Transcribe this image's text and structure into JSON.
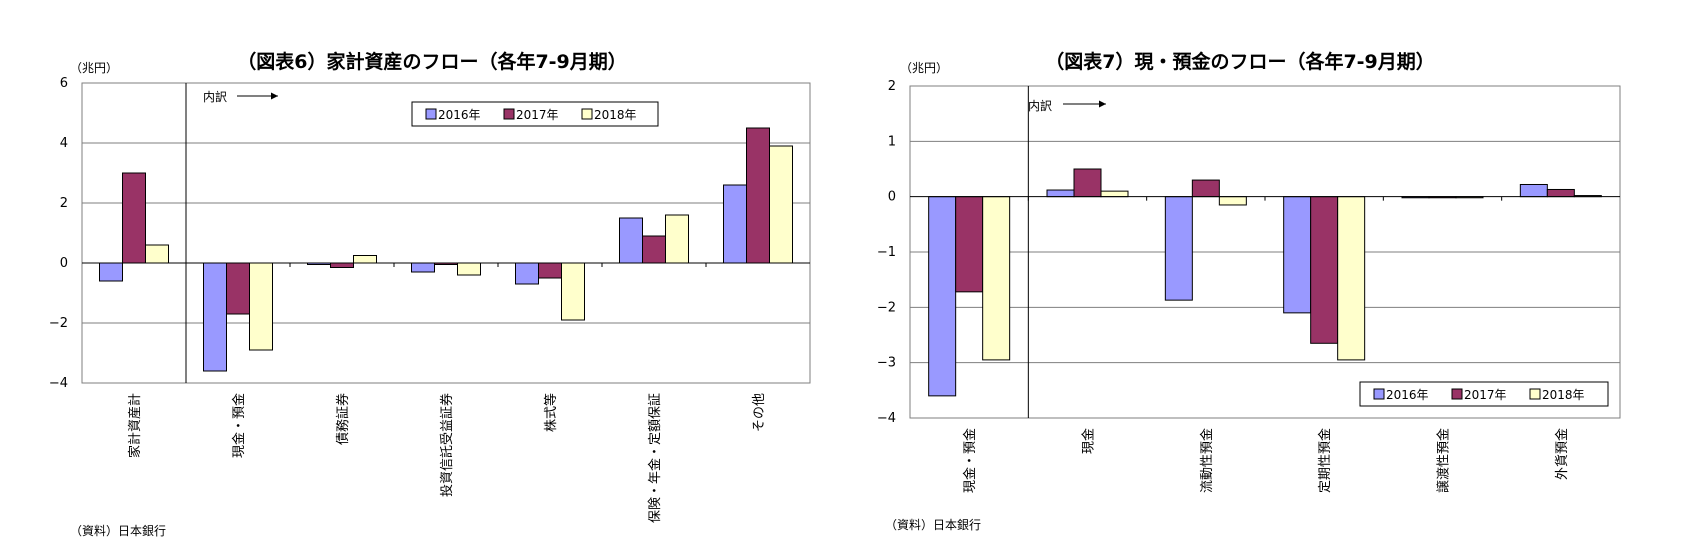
{
  "chart_data": [
    {
      "type": "bar",
      "title": "（図表6）家計資産のフロー（各年7-9月期）",
      "unit_label": "（兆円）",
      "source": "（資料）日本銀行",
      "breakdown_label": "内訳",
      "ylim": [
        -4,
        6
      ],
      "yticks": [
        "6",
        "4",
        "2",
        "0",
        "−2",
        "−4"
      ],
      "grid": true,
      "legend_position": "top-center",
      "categories": [
        "家計資産計",
        "現金・預金",
        "債務証券",
        "投資信託受益証券",
        "株式等",
        "保険・年金・定額保証",
        "その他"
      ],
      "series": [
        {
          "name": "2016年",
          "color": "#9999ff",
          "values": [
            -0.6,
            -3.6,
            -0.05,
            -0.3,
            -0.7,
            1.5,
            2.6
          ]
        },
        {
          "name": "2017年",
          "color": "#993366",
          "values": [
            3.0,
            -1.7,
            -0.15,
            -0.05,
            -0.5,
            0.9,
            4.5
          ]
        },
        {
          "name": "2018年",
          "color": "#ffffcc",
          "values": [
            0.6,
            -2.9,
            0.25,
            -0.4,
            -1.9,
            1.6,
            3.9
          ]
        }
      ]
    },
    {
      "type": "bar",
      "title": "（図表7）現・預金のフロー（各年7-9月期）",
      "unit_label": "（兆円）",
      "source": "（資料）日本銀行",
      "breakdown_label": "内訳",
      "ylim": [
        -4,
        2
      ],
      "yticks": [
        "2",
        "1",
        "0",
        "−1",
        "−2",
        "−3",
        "−4"
      ],
      "grid": true,
      "legend_position": "bottom-right",
      "categories": [
        "現金・預金",
        "現金",
        "流動性預金",
        "定期性預金",
        "譲渡性預金",
        "外貨預金"
      ],
      "series": [
        {
          "name": "2016年",
          "color": "#9999ff",
          "values": [
            -3.6,
            0.12,
            -1.87,
            -2.1,
            -0.02,
            0.22
          ]
        },
        {
          "name": "2017年",
          "color": "#993366",
          "values": [
            -1.72,
            0.5,
            0.3,
            -2.65,
            -0.02,
            0.13
          ]
        },
        {
          "name": "2018年",
          "color": "#ffffcc",
          "values": [
            -2.95,
            0.1,
            -0.15,
            -2.95,
            -0.02,
            0.02
          ]
        }
      ]
    }
  ]
}
